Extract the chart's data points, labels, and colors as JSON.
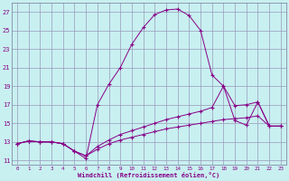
{
  "xlabel": "Windchill (Refroidissement éolien,°C)",
  "bg_color": "#c8f0f0",
  "grid_color": "#9999bb",
  "line_color": "#880088",
  "xlim": [
    -0.5,
    23.5
  ],
  "ylim": [
    10.5,
    28
  ],
  "xticks": [
    0,
    1,
    2,
    3,
    4,
    5,
    6,
    7,
    8,
    9,
    10,
    11,
    12,
    13,
    14,
    15,
    16,
    17,
    18,
    19,
    20,
    21,
    22,
    23
  ],
  "yticks": [
    11,
    13,
    15,
    17,
    19,
    21,
    23,
    25,
    27
  ],
  "line1_x": [
    0,
    1,
    2,
    3,
    4,
    5,
    6,
    7,
    8,
    9,
    10,
    11,
    12,
    13,
    14,
    15,
    16,
    17,
    18,
    19,
    20,
    21,
    22,
    23
  ],
  "line1_y": [
    12.8,
    13.1,
    13.0,
    13.0,
    12.8,
    12.0,
    11.2,
    17.0,
    19.2,
    21.0,
    23.5,
    25.3,
    26.7,
    27.2,
    27.3,
    26.6,
    25.0,
    20.2,
    19.0,
    15.3,
    14.8,
    17.3,
    14.7,
    14.7
  ],
  "line2_x": [
    0,
    1,
    2,
    3,
    4,
    5,
    6,
    7,
    8,
    9,
    10,
    11,
    12,
    13,
    14,
    15,
    16,
    17,
    18,
    19,
    20,
    21,
    22,
    23
  ],
  "line2_y": [
    12.8,
    13.1,
    13.0,
    13.0,
    12.8,
    12.0,
    11.5,
    12.5,
    13.2,
    13.8,
    14.2,
    14.6,
    15.0,
    15.4,
    15.7,
    16.0,
    16.3,
    16.7,
    19.0,
    16.9,
    17.0,
    17.3,
    14.7,
    14.7
  ],
  "line3_x": [
    0,
    1,
    2,
    3,
    4,
    5,
    6,
    7,
    8,
    9,
    10,
    11,
    12,
    13,
    14,
    15,
    16,
    17,
    18,
    19,
    20,
    21,
    22,
    23
  ],
  "line3_y": [
    12.8,
    13.1,
    13.0,
    13.0,
    12.8,
    12.0,
    11.5,
    12.2,
    12.8,
    13.2,
    13.5,
    13.8,
    14.1,
    14.4,
    14.6,
    14.8,
    15.0,
    15.2,
    15.4,
    15.5,
    15.6,
    15.8,
    14.7,
    14.7
  ]
}
